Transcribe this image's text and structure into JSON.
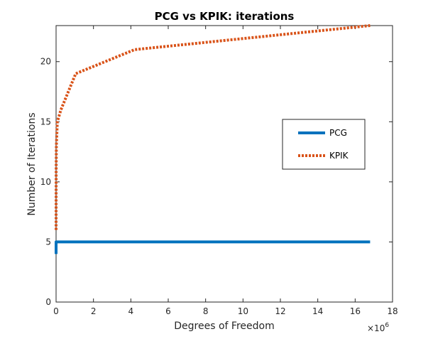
{
  "chart_data": {
    "type": "line",
    "title": "PCG vs KPIK: iterations",
    "xlabel": "Degrees of Freedom",
    "ylabel": "Number of Iterations",
    "x_exponent_base": "×10",
    "x_exponent_power": "6",
    "xlim": [
      0,
      18
    ],
    "ylim": [
      0,
      23
    ],
    "xticks": [
      0,
      2,
      4,
      6,
      8,
      10,
      12,
      14,
      16,
      18
    ],
    "yticks": [
      0,
      5,
      10,
      15,
      20
    ],
    "grid": false,
    "legend_position": "right-center",
    "series": [
      {
        "name": "PCG",
        "color": "#0072BD",
        "style": "solid",
        "x": [
          0.0,
          0.001,
          0.004,
          0.016,
          0.066,
          0.26,
          1.05,
          4.2,
          16.8
        ],
        "y": [
          4,
          5,
          5,
          5,
          5,
          5,
          5,
          5,
          5
        ]
      },
      {
        "name": "KPIK",
        "color": "#D95319",
        "style": "dotted",
        "x": [
          0.0,
          0.001,
          0.004,
          0.016,
          0.066,
          0.26,
          1.05,
          4.2,
          16.8
        ],
        "y": [
          6,
          8,
          11,
          13,
          15,
          16,
          19,
          21,
          23
        ]
      }
    ]
  }
}
